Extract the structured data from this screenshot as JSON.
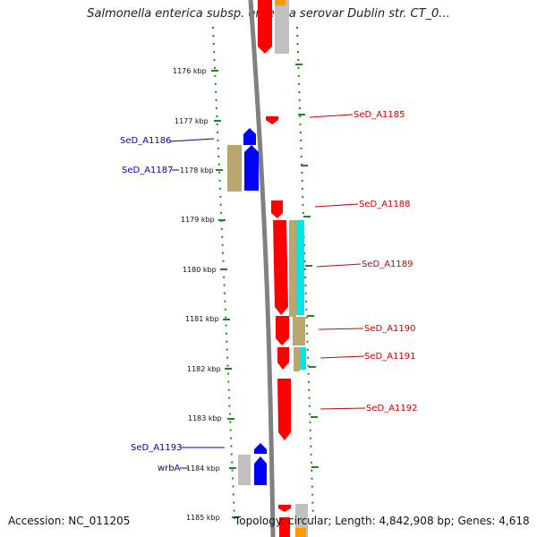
{
  "title": "Salmonella enterica subsp. enterica serovar Dublin str. CT_0...",
  "footer": {
    "accession": "Accession: NC_011205",
    "summary": "Topology: circular; Length: 4,842,908 bp; Genes: 4,618"
  },
  "position_labels": [
    "1176 kbp",
    "1177 kbp",
    "1178 kbp",
    "1179 kbp",
    "1180 kbp",
    "1181 kbp",
    "1182 kbp",
    "1183 kbp",
    "1184 kbp",
    "1185 kbp"
  ],
  "genes": {
    "forward": [
      "SeD_A1185",
      "SeD_A1188",
      "SeD_A1189",
      "SeD_A1190",
      "SeD_A1191",
      "SeD_A1192"
    ],
    "reverse": [
      "SeD_A1186",
      "SeD_A1187",
      "SeD_A1193",
      "wrbA"
    ]
  },
  "colors": {
    "forward_strand": "#ff0000",
    "reverse_strand": "#0000ff",
    "tick_marks": "#1a8a1a",
    "backbone": "#808080",
    "cyan_feature": "#00e5e5",
    "tan_feature": "#b8a870",
    "orange_feature": "#ff9900"
  }
}
